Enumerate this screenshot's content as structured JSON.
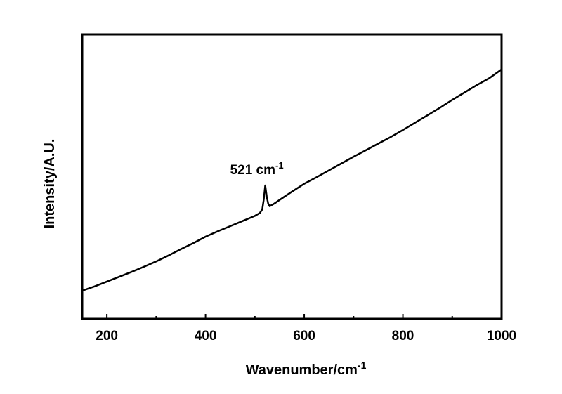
{
  "chart_data": {
    "type": "line",
    "xlabel": "Wavenumber/cm",
    "xlabel_sup": "-1",
    "ylabel": "Intensity/A.U.",
    "annotation": "521 cm",
    "annotation_sup": "-1",
    "x": [
      150,
      175,
      200,
      225,
      250,
      275,
      300,
      325,
      350,
      375,
      400,
      425,
      450,
      475,
      500,
      510,
      515,
      518,
      521,
      524,
      527,
      530,
      540,
      550,
      575,
      600,
      625,
      650,
      675,
      700,
      725,
      750,
      775,
      800,
      825,
      850,
      875,
      900,
      925,
      950,
      975,
      1000
    ],
    "series": [
      {
        "color": "#000000",
        "values": [
          9.9,
          11.4,
          13.1,
          14.8,
          16.5,
          18.3,
          20.2,
          22.3,
          24.5,
          26.6,
          28.9,
          30.8,
          32.6,
          34.4,
          36.2,
          37.2,
          38.5,
          42,
          46.9,
          43,
          40.5,
          39.6,
          40.6,
          41.8,
          44.7,
          47.5,
          49.8,
          52.2,
          54.6,
          57,
          59.3,
          61.6,
          63.9,
          66.4,
          69,
          71.6,
          74.2,
          77,
          79.6,
          82.2,
          84.6,
          87.7
        ]
      }
    ],
    "xlim": [
      150,
      1000
    ],
    "ylim": [
      0,
      100
    ],
    "xticks": [
      200,
      400,
      600,
      800,
      1000
    ],
    "xminor_ticks": [
      300,
      500,
      700,
      900
    ],
    "grid": false
  }
}
